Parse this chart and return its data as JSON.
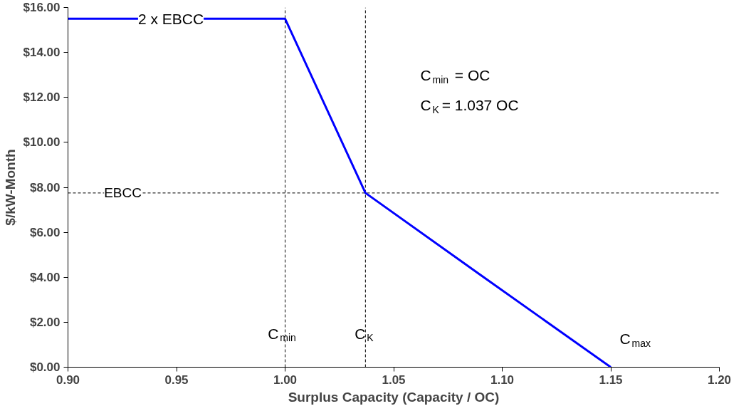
{
  "chart_data": {
    "type": "line",
    "xlabel": "Surplus Capacity (Capacity / OC)",
    "ylabel": "$/kW-Month",
    "x": [
      0.9,
      1.0,
      1.037,
      1.09,
      1.15
    ],
    "series": [
      {
        "color": "#0000ff",
        "values": [
          15.5,
          15.5,
          7.75,
          4.1,
          0
        ]
      }
    ],
    "xlim": [
      0.9,
      1.2
    ],
    "xticks": [
      {
        "value": 0.9,
        "label": "0.90"
      },
      {
        "value": 0.95,
        "label": "0.95"
      },
      {
        "value": 1.0,
        "label": "1.00"
      },
      {
        "value": 1.05,
        "label": "1.05"
      },
      {
        "value": 1.1,
        "label": "1.10"
      },
      {
        "value": 1.15,
        "label": "1.15"
      },
      {
        "value": 1.2,
        "label": "1.20"
      }
    ],
    "ylim": [
      0,
      16
    ],
    "yticks": [
      {
        "value": 0,
        "label": "$0.00"
      },
      {
        "value": 2,
        "label": "$2.00"
      },
      {
        "value": 4,
        "label": "$4.00"
      },
      {
        "value": 6,
        "label": "$6.00"
      },
      {
        "value": 8,
        "label": "$8.00"
      },
      {
        "value": 10,
        "label": "$10.00"
      },
      {
        "value": 12,
        "label": "$12.00"
      },
      {
        "value": 14,
        "label": "$14.00"
      },
      {
        "value": 16,
        "label": "$16.00"
      }
    ],
    "ref_lines": [
      {
        "axis": "y",
        "value": 7.75,
        "label": "EBCC",
        "color": "#000000",
        "line_style": "dashed"
      },
      {
        "axis": "x",
        "value": 1.0,
        "color": "#000000",
        "line_style": "dashed"
      },
      {
        "axis": "x",
        "value": 1.037,
        "color": "#000000",
        "line_style": "dashed"
      }
    ],
    "annotations": [
      {
        "text": "2 x EBCC",
        "x": 0.95,
        "y": 15.5
      },
      {
        "text": "C$_{min}$",
        "x": 1.0,
        "y": 1.5
      },
      {
        "text": "C$_{K}$",
        "x": 1.037,
        "y": 1.5
      },
      "C$_{max}$",
      "C$_{min}$ = OC",
      "C$_{K}$ = 1.037 OC"
    ],
    "grid": false,
    "marker": "none",
    "line_style": "solid"
  }
}
